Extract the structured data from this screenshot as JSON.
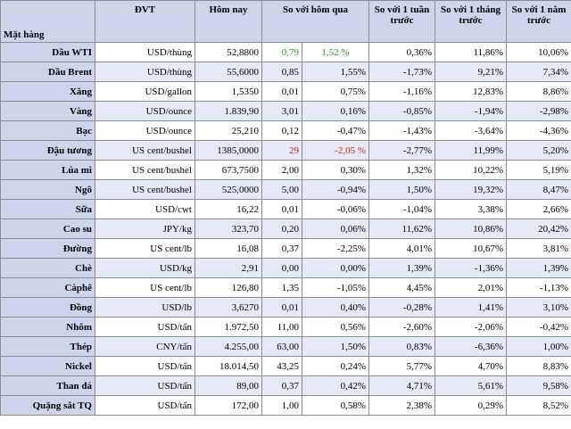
{
  "headers": {
    "item": "Mặt hàng",
    "unit": "ĐVT",
    "today": "Hôm nay",
    "vs_yesterday": "So với hôm qua",
    "vs_week": "So với 1 tuần trước",
    "vs_month": "So với 1 tháng trước",
    "vs_year": "So với 1 năm trước"
  },
  "colors": {
    "header_bg": "#cdd4ec",
    "up": "#1f9a2a",
    "down": "#d8201a"
  },
  "rows": [
    {
      "name": "Dầu WTI",
      "unit": "USD/thùng",
      "price": "52,8800",
      "chg": "0,79",
      "pct": "1,52 %",
      "week": "0,36%",
      "month": "11,86%",
      "year": "10,06%",
      "tone": "up"
    },
    {
      "name": "Dầu Brent",
      "unit": "USD/thùng",
      "price": "55,6000",
      "chg": "0,85",
      "pct": "1,55%",
      "week": "-1,73%",
      "month": "9,21%",
      "year": "7,34%",
      "tone": ""
    },
    {
      "name": "Xăng",
      "unit": "USD/gallon",
      "price": "1,5350",
      "chg": "0,01",
      "pct": "0,75%",
      "week": "-1,16%",
      "month": "12,83%",
      "year": "8,86%",
      "tone": ""
    },
    {
      "name": "Vàng",
      "unit": "USD/ounce",
      "price": "1.839,90",
      "chg": "3,01",
      "pct": "0,16%",
      "week": "-0,85%",
      "month": "-1,94%",
      "year": "-2,98%",
      "tone": ""
    },
    {
      "name": "Bạc",
      "unit": "USD/ounce",
      "price": "25,210",
      "chg": "0,12",
      "pct": "-0,47%",
      "week": "-1,43%",
      "month": "-3,64%",
      "year": "-4,36%",
      "tone": ""
    },
    {
      "name": "Đậu tương",
      "unit": "US cent/bushel",
      "price": "1385,0000",
      "chg": "29",
      "pct": "-2,05 %",
      "week": "-2,77%",
      "month": "11,99%",
      "year": "5,20%",
      "tone": "down"
    },
    {
      "name": "Lúa mì",
      "unit": "US cent/bushel",
      "price": "673,7500",
      "chg": "2,00",
      "pct": "0,30%",
      "week": "1,32%",
      "month": "10,22%",
      "year": "5,19%",
      "tone": ""
    },
    {
      "name": "Ngô",
      "unit": "US cent/bushel",
      "price": "525,0000",
      "chg": "5,00",
      "pct": "-0,94%",
      "week": "1,50%",
      "month": "19,32%",
      "year": "8,47%",
      "tone": ""
    },
    {
      "name": "Sữa",
      "unit": "USD/cwt",
      "price": "16,22",
      "chg": "0,01",
      "pct": "-0,06%",
      "week": "-1,04%",
      "month": "3,38%",
      "year": "2,66%",
      "tone": ""
    },
    {
      "name": "Cao su",
      "unit": "JPY/kg",
      "price": "323,70",
      "chg": "0,20",
      "pct": "0,06%",
      "week": "11,62%",
      "month": "10,86%",
      "year": "20,42%",
      "tone": ""
    },
    {
      "name": "Đường",
      "unit": "US cent/lb",
      "price": "16,08",
      "chg": "0,37",
      "pct": "-2,25%",
      "week": "4,01%",
      "month": "10,67%",
      "year": "3,81%",
      "tone": ""
    },
    {
      "name": "Chè",
      "unit": "USD/kg",
      "price": "2,91",
      "chg": "0,00",
      "pct": "0,00%",
      "week": "1,39%",
      "month": "-1,36%",
      "year": "1,39%",
      "tone": ""
    },
    {
      "name": "Càphê",
      "unit": "US cent/lb",
      "price": "126,80",
      "chg": "1,35",
      "pct": "-1,05%",
      "week": "4,45%",
      "month": "2,01%",
      "year": "-1,13%",
      "tone": ""
    },
    {
      "name": "Đồng",
      "unit": "USD/lb",
      "price": "3,6270",
      "chg": "0,01",
      "pct": "0,40%",
      "week": "-0,28%",
      "month": "1,41%",
      "year": "3,10%",
      "tone": ""
    },
    {
      "name": "Nhôm",
      "unit": "USD/tấn",
      "price": "1.972,50",
      "chg": "11,00",
      "pct": "0,56%",
      "week": "-2,60%",
      "month": "-2,06%",
      "year": "-0,42%",
      "tone": ""
    },
    {
      "name": "Thép",
      "unit": "CNY/tấn",
      "price": "4.255,00",
      "chg": "63,00",
      "pct": "1,50%",
      "week": "0,83%",
      "month": "-6,36%",
      "year": "1,00%",
      "tone": ""
    },
    {
      "name": "Nickel",
      "unit": "USD/tấn",
      "price": "18.014,50",
      "chg": "43,25",
      "pct": "0,24%",
      "week": "5,77%",
      "month": "4,70%",
      "year": "8,83%",
      "tone": ""
    },
    {
      "name": "Than đá",
      "unit": "USD/tấn",
      "price": "89,00",
      "chg": "0,37",
      "pct": "0,42%",
      "week": "4,71%",
      "month": "5,61%",
      "year": "9,58%",
      "tone": ""
    },
    {
      "name": "Quặng sắt TQ",
      "unit": "USD/tấn",
      "price": "172,00",
      "chg": "1,00",
      "pct": "0,58%",
      "week": "2,38%",
      "month": "0,29%",
      "year": "8,52%",
      "tone": ""
    }
  ]
}
